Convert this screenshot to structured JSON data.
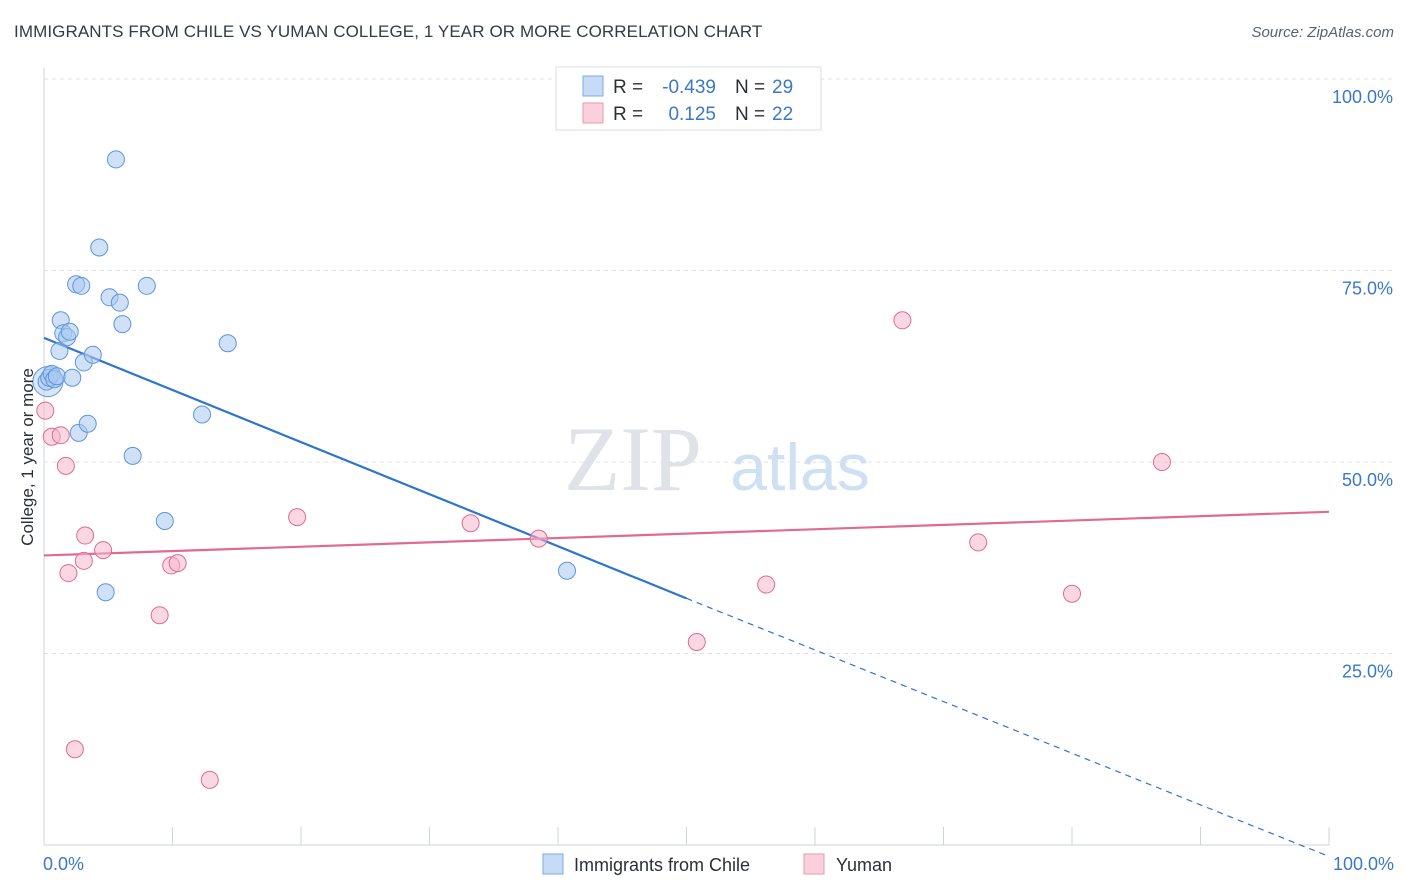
{
  "title": "IMMIGRANTS FROM CHILE VS YUMAN COLLEGE, 1 YEAR OR MORE CORRELATION CHART",
  "source": "Source: ZipAtlas.com",
  "watermark": {
    "zip": "ZIP",
    "atlas": "atlas"
  },
  "legend_top": [
    {
      "r_label": "R =",
      "r_value": "-0.439",
      "n_label": "N =",
      "n_value": "29",
      "color": "#a9c8f0"
    },
    {
      "r_label": "R =",
      "r_value": "0.125",
      "n_label": "N =",
      "n_value": "22",
      "color": "#f5b8cc"
    }
  ],
  "chart_data": {
    "type": "scatter",
    "title": "IMMIGRANTS FROM CHILE VS YUMAN COLLEGE, 1 YEAR OR MORE CORRELATION CHART",
    "xlabel": "",
    "ylabel": "College, 1 year or more",
    "xlim": [
      0,
      100
    ],
    "ylim": [
      0,
      100
    ],
    "x_tick_labels": [
      "0.0%",
      "100.0%"
    ],
    "y_tick_labels": [
      "100.0%",
      "75.0%",
      "50.0%",
      "25.0%"
    ],
    "y_ticks": [
      100,
      75,
      50,
      25
    ],
    "grid": true,
    "legend_position": "bottom",
    "series": [
      {
        "name": "Immigrants from Chile",
        "color": "#5b96dc",
        "fill": "#a9c8f0",
        "points": [
          [
            0.2,
            60.5
          ],
          [
            0.4,
            61.0
          ],
          [
            0.6,
            61.5
          ],
          [
            0.8,
            60.8
          ],
          [
            1.0,
            61.2
          ],
          [
            1.2,
            64.5
          ],
          [
            1.3,
            68.5
          ],
          [
            1.5,
            66.8
          ],
          [
            1.8,
            66.3
          ],
          [
            2.0,
            67.0
          ],
          [
            2.2,
            61.0
          ],
          [
            2.5,
            73.2
          ],
          [
            2.7,
            53.8
          ],
          [
            2.9,
            73.0
          ],
          [
            3.1,
            63.0
          ],
          [
            3.4,
            55.0
          ],
          [
            3.8,
            64.0
          ],
          [
            4.3,
            78.0
          ],
          [
            4.8,
            33.0
          ],
          [
            5.1,
            71.5
          ],
          [
            5.6,
            89.5
          ],
          [
            5.9,
            70.8
          ],
          [
            6.1,
            68.0
          ],
          [
            6.9,
            50.8
          ],
          [
            8.0,
            73.0
          ],
          [
            9.4,
            42.3
          ],
          [
            12.3,
            56.2
          ],
          [
            14.3,
            65.5
          ],
          [
            40.7,
            35.8
          ]
        ],
        "trend": {
          "x": [
            0,
            50
          ],
          "y": [
            66.2,
            32.2
          ],
          "dashed_to": [
            100,
            -1.5
          ]
        }
      },
      {
        "name": "Yuman",
        "color": "#e06a93",
        "fill": "#f5b8cc",
        "points": [
          [
            0.1,
            56.7
          ],
          [
            0.6,
            53.3
          ],
          [
            1.3,
            53.5
          ],
          [
            1.7,
            49.5
          ],
          [
            1.9,
            35.5
          ],
          [
            2.4,
            12.5
          ],
          [
            3.1,
            37.1
          ],
          [
            3.2,
            40.4
          ],
          [
            4.6,
            38.5
          ],
          [
            9.0,
            30.0
          ],
          [
            9.9,
            36.5
          ],
          [
            10.4,
            36.8
          ],
          [
            12.9,
            8.5
          ],
          [
            19.7,
            42.8
          ],
          [
            33.2,
            42.0
          ],
          [
            38.5,
            40.0
          ],
          [
            50.8,
            26.5
          ],
          [
            56.2,
            34.0
          ],
          [
            66.8,
            68.5
          ],
          [
            72.7,
            39.5
          ],
          [
            80.0,
            32.8
          ],
          [
            87.0,
            50.0
          ]
        ],
        "trend": {
          "x": [
            0,
            100
          ],
          "y": [
            37.8,
            43.5
          ]
        }
      }
    ]
  }
}
